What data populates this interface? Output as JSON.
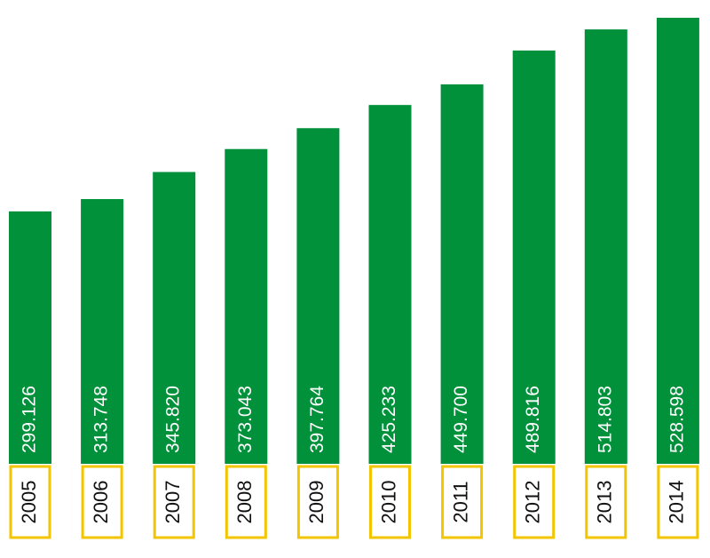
{
  "chart_data": {
    "type": "bar",
    "categories": [
      "2005",
      "2006",
      "2007",
      "2008",
      "2009",
      "2010",
      "2011",
      "2012",
      "2013",
      "2014"
    ],
    "values": [
      299126,
      313748,
      345820,
      373043,
      397764,
      425233,
      449700,
      489816,
      514803,
      528598
    ],
    "value_labels": [
      "299.126",
      "313.748",
      "345.820",
      "373.043",
      "397.764",
      "425.233",
      "449.700",
      "489.816",
      "514.803",
      "528.598"
    ],
    "color": "#00913a",
    "category_box_color": "#f2c500"
  }
}
